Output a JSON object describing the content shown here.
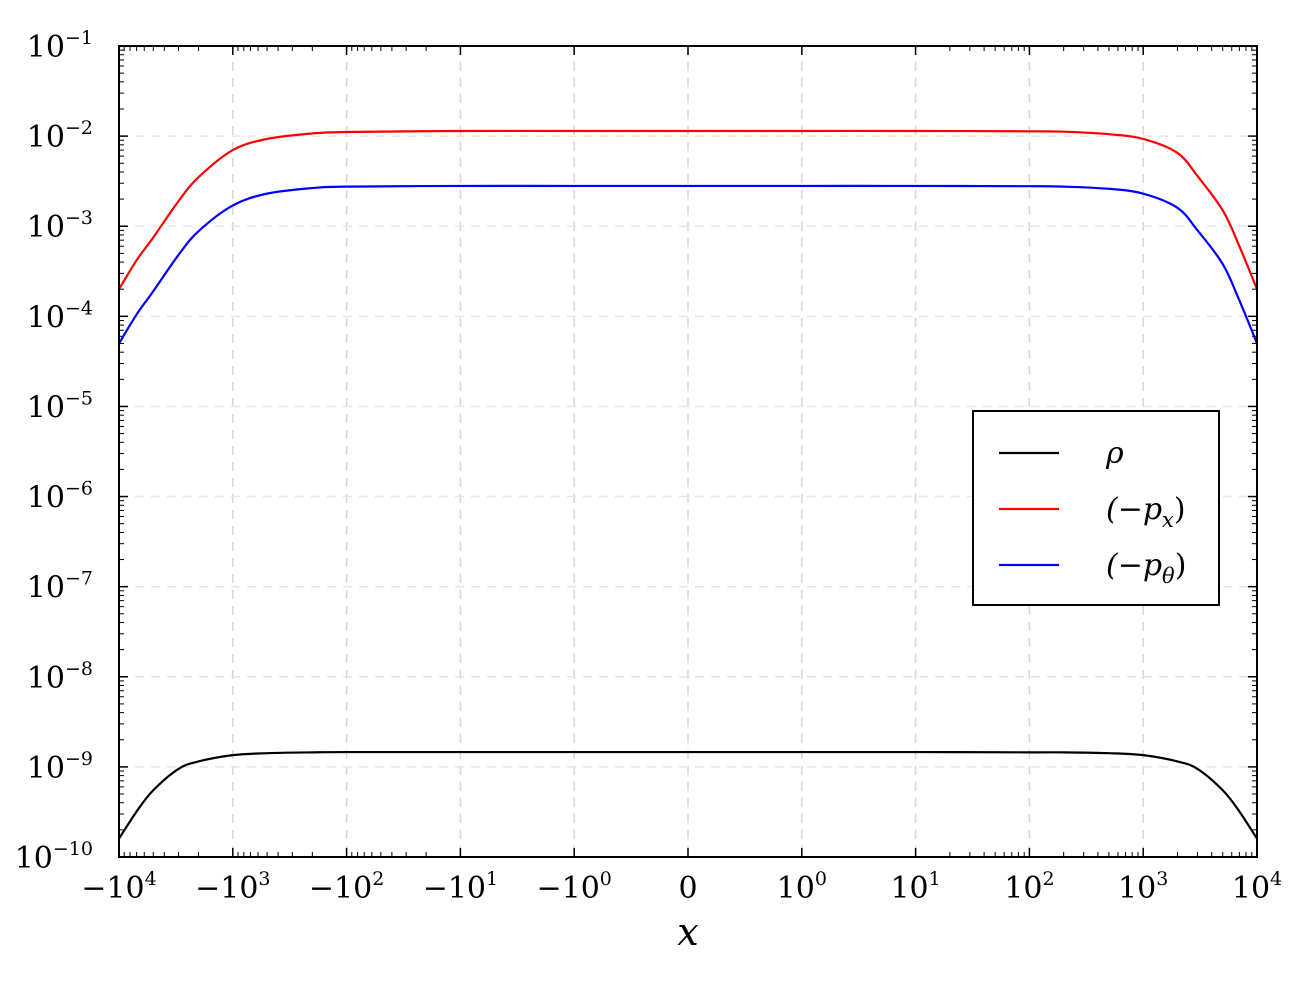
{
  "chart_data": {
    "type": "line",
    "title": "",
    "xlabel": "x",
    "ylabel": "",
    "x_scale": "symlog",
    "y_scale": "log",
    "xlim": [
      -10000,
      10000
    ],
    "ylim": [
      1e-10,
      0.1
    ],
    "grid": true,
    "legend_position": "right",
    "x_ticks": [
      {
        "value": -10000,
        "base": "−10",
        "exp": "4"
      },
      {
        "value": -1000,
        "base": "−10",
        "exp": "3"
      },
      {
        "value": -100,
        "base": "−10",
        "exp": "2"
      },
      {
        "value": -10,
        "base": "−10",
        "exp": "1"
      },
      {
        "value": -1,
        "base": "−10",
        "exp": "0"
      },
      {
        "value": 0,
        "base": "0",
        "exp": ""
      },
      {
        "value": 1,
        "base": "10",
        "exp": "0"
      },
      {
        "value": 10,
        "base": "10",
        "exp": "1"
      },
      {
        "value": 100,
        "base": "10",
        "exp": "2"
      },
      {
        "value": 1000,
        "base": "10",
        "exp": "3"
      },
      {
        "value": 10000,
        "base": "10",
        "exp": "4"
      }
    ],
    "y_ticks": [
      {
        "value": 0.1,
        "base": "10",
        "exp": "−1"
      },
      {
        "value": 0.01,
        "base": "10",
        "exp": "−2"
      },
      {
        "value": 0.001,
        "base": "10",
        "exp": "−3"
      },
      {
        "value": 0.0001,
        "base": "10",
        "exp": "−4"
      },
      {
        "value": 1e-05,
        "base": "10",
        "exp": "−5"
      },
      {
        "value": 1e-06,
        "base": "10",
        "exp": "−6"
      },
      {
        "value": 1e-07,
        "base": "10",
        "exp": "−7"
      },
      {
        "value": 1e-08,
        "base": "10",
        "exp": "−8"
      },
      {
        "value": 1e-09,
        "base": "10",
        "exp": "−9"
      },
      {
        "value": 1e-10,
        "base": "10",
        "exp": "−10"
      }
    ],
    "series": [
      {
        "name": "ρ",
        "label_parts": [
          {
            "t": "ρ",
            "sub": false
          }
        ],
        "color": "#000000",
        "points": [
          [
            -10000,
            1.6e-10
          ],
          [
            -7000,
            3.2e-10
          ],
          [
            -5000,
            5.5e-10
          ],
          [
            -3000,
            9.5e-10
          ],
          [
            -2000,
            1.15e-09
          ],
          [
            -1000,
            1.35e-09
          ],
          [
            -500,
            1.42e-09
          ],
          [
            -200,
            1.45e-09
          ],
          [
            -100,
            1.46e-09
          ],
          [
            -10,
            1.46e-09
          ],
          [
            -1,
            1.46e-09
          ],
          [
            0,
            1.46e-09
          ],
          [
            1,
            1.46e-09
          ],
          [
            10,
            1.46e-09
          ],
          [
            100,
            1.45e-09
          ],
          [
            200,
            1.45e-09
          ],
          [
            500,
            1.42e-09
          ],
          [
            1000,
            1.35e-09
          ],
          [
            2000,
            1.15e-09
          ],
          [
            3000,
            9.5e-10
          ],
          [
            5000,
            5.5e-10
          ],
          [
            7000,
            3.2e-10
          ],
          [
            10000,
            1.6e-10
          ]
        ]
      },
      {
        "name": "(−p_x)",
        "label_parts": [
          {
            "t": "(−p",
            "sub": false
          },
          {
            "t": "x",
            "sub": true
          },
          {
            "t": ")",
            "sub": false
          }
        ],
        "color": "#ff0000",
        "points": [
          [
            -10000,
            0.0002
          ],
          [
            -7000,
            0.00042
          ],
          [
            -5000,
            0.00075
          ],
          [
            -3000,
            0.0019
          ],
          [
            -2000,
            0.0035
          ],
          [
            -1000,
            0.007
          ],
          [
            -500,
            0.0093
          ],
          [
            -200,
            0.0107
          ],
          [
            -100,
            0.0111
          ],
          [
            -10,
            0.0114
          ],
          [
            -1,
            0.0114
          ],
          [
            0,
            0.0114
          ],
          [
            1,
            0.0114
          ],
          [
            10,
            0.0114
          ],
          [
            100,
            0.0113
          ],
          [
            200,
            0.0112
          ],
          [
            500,
            0.0105
          ],
          [
            1000,
            0.0093
          ],
          [
            2000,
            0.0065
          ],
          [
            3000,
            0.0036
          ],
          [
            5000,
            0.0015
          ],
          [
            7000,
            0.0006
          ],
          [
            10000,
            0.0002
          ]
        ]
      },
      {
        "name": "(−p_θ)",
        "label_parts": [
          {
            "t": "(−p",
            "sub": false
          },
          {
            "t": "θ",
            "sub": true
          },
          {
            "t": ")",
            "sub": false
          }
        ],
        "color": "#0000ff",
        "points": [
          [
            -10000,
            5e-05
          ],
          [
            -7000,
            0.000105
          ],
          [
            -5000,
            0.00019
          ],
          [
            -3000,
            0.00048
          ],
          [
            -2000,
            0.00088
          ],
          [
            -1000,
            0.0017
          ],
          [
            -500,
            0.0023
          ],
          [
            -200,
            0.00265
          ],
          [
            -100,
            0.00275
          ],
          [
            -10,
            0.0028
          ],
          [
            -1,
            0.0028
          ],
          [
            0,
            0.0028
          ],
          [
            1,
            0.0028
          ],
          [
            10,
            0.0028
          ],
          [
            100,
            0.00278
          ],
          [
            200,
            0.00275
          ],
          [
            500,
            0.0026
          ],
          [
            1000,
            0.0023
          ],
          [
            2000,
            0.0016
          ],
          [
            3000,
            0.0009
          ],
          [
            5000,
            0.00038
          ],
          [
            7000,
            0.00015
          ],
          [
            10000,
            5e-05
          ]
        ]
      }
    ]
  }
}
